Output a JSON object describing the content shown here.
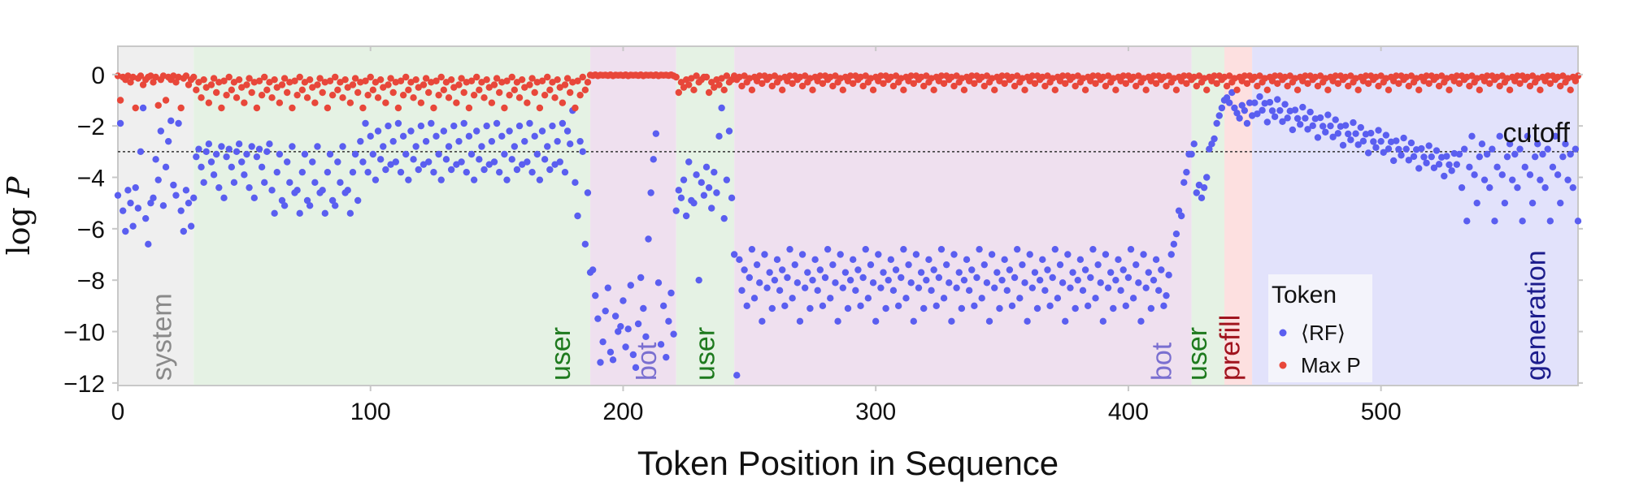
{
  "chart_data": {
    "type": "scatter",
    "xlabel": "Token Position in Sequence",
    "ylabel_prefix": "log",
    "ylabel_var": "P",
    "xlim": [
      0,
      578
    ],
    "ylim": [
      -12.1,
      1.1
    ],
    "xticks": [
      0,
      100,
      200,
      300,
      400,
      500
    ],
    "yticks": [
      0,
      -2,
      -4,
      -6,
      -8,
      -10,
      -12
    ],
    "ytick_labels": [
      "0",
      "−2",
      "−4",
      "−6",
      "−8",
      "−10",
      "−12"
    ],
    "grid": false,
    "cutoff": {
      "y": -3,
      "label": "cutoff"
    },
    "regions": [
      {
        "label": "system",
        "start": 0,
        "end": 30,
        "fill": "#efefef",
        "text_color": "#8a8a8a",
        "label_x": 21
      },
      {
        "label": "user",
        "start": 30,
        "end": 187,
        "fill": "#e5f2e4",
        "text_color": "#1e7a1e",
        "label_x": 179
      },
      {
        "label": "bot",
        "start": 187,
        "end": 221,
        "fill": "#efe0ef",
        "text_color": "#7a6fd0",
        "label_x": 213
      },
      {
        "label": "user",
        "start": 221,
        "end": 244,
        "fill": "#e5f2e4",
        "text_color": "#1e7a1e",
        "label_x": 236
      },
      {
        "label": "bot",
        "start": 244,
        "end": 425,
        "fill": "#efe0ef",
        "text_color": "#7a6fd0",
        "label_x": 417
      },
      {
        "label": "user",
        "start": 425,
        "end": 438,
        "fill": "#e5f2e4",
        "text_color": "#1e7a1e",
        "label_x": 431
      },
      {
        "label": "prefill",
        "start": 438,
        "end": 449,
        "fill": "#fde0e0",
        "text_color": "#a0141e",
        "label_x": 444
      },
      {
        "label": "generation",
        "start": 449,
        "end": 578,
        "fill": "#e2e2fb",
        "text_color": "#1c1c8c",
        "label_x": 565
      }
    ],
    "legend": {
      "title": "Token",
      "placement": "lower-right",
      "entries": [
        {
          "label": "⟨RF⟩",
          "color": "#5a5ef0"
        },
        {
          "label": "Max P",
          "color": "#e8473a"
        }
      ]
    },
    "series": [
      {
        "name": "⟨RF⟩",
        "color": "#5a5ef0",
        "segments": [
          {
            "start": 0,
            "end": 29,
            "pattern": [
              -4.7,
              -1.9,
              -5.3,
              -6.1,
              -4.5,
              -5.0,
              -5.9,
              -4.4,
              -5.2,
              -3.0,
              -1.3,
              -5.6,
              -6.6,
              -5.0,
              -4.8,
              -3.3,
              -4.1,
              -2.2,
              -5.1,
              -3.6,
              -2.6,
              -1.8,
              -4.3
            ]
          },
          {
            "start": 30,
            "end": 60,
            "base": -3.3,
            "amp": 0.8,
            "pattern": [
              -4.8,
              -3.2,
              -2.9,
              -3.6,
              -4.2,
              -3.0,
              -2.7,
              -3.4,
              -3.9,
              -3.1,
              -4.4,
              -2.8
            ]
          },
          {
            "start": 61,
            "end": 95,
            "base": -3.9,
            "amp": 1.1,
            "pattern": [
              -4.5,
              -5.4,
              -3.8,
              -3.1,
              -4.9,
              -5.1,
              -3.4,
              -4.2,
              -2.8,
              -4.6
            ]
          },
          {
            "start": 96,
            "end": 177,
            "base": -3.0,
            "amp": 0.9,
            "pattern": [
              -2.6,
              -3.4,
              -1.9,
              -3.8,
              -2.4,
              -3.1,
              -4.1,
              -2.2,
              -3.3,
              -2.8,
              -3.7,
              -2.0,
              -3.5
            ]
          },
          {
            "start": 178,
            "end": 186,
            "pattern": [
              -2.2,
              -2.7,
              -1.4,
              -4.2,
              -5.5,
              -2.6,
              -3.0,
              -6.6,
              -4.6
            ]
          },
          {
            "start": 187,
            "end": 220,
            "pattern": [
              -7.7,
              -7.6,
              -8.6,
              -9.5,
              -11.2,
              -10.4,
              -9.2,
              -8.3,
              -10.8,
              -11.1,
              -9.4,
              -10.0,
              -9.8,
              -8.8,
              -10.6,
              -9.9,
              -8.2,
              -10.9,
              -11.4,
              -9.7,
              -7.9,
              -9.1,
              -10.2,
              -6.4,
              -4.6,
              -3.3,
              -2.3,
              -8.1,
              -10.5,
              -9.0,
              -11.0,
              -9.6,
              -8.5,
              -10.1
            ]
          },
          {
            "start": 221,
            "end": 243,
            "pattern": [
              -5.3,
              -4.5,
              -4.8,
              -4.1,
              -5.5,
              -3.4,
              -4.9,
              -5.0,
              -3.9,
              -8.0,
              -4.2,
              -4.7,
              -3.6,
              -4.4,
              -5.2,
              -3.8,
              -4.6,
              -2.4,
              -1.3,
              -5.6,
              -4.1,
              -2.2,
              -4.8
            ]
          },
          {
            "start": 244,
            "end": 245,
            "pattern": [
              -7.0,
              -11.7
            ]
          },
          {
            "start": 246,
            "end": 414,
            "base": -7.8,
            "amp": 1.0,
            "pattern": [
              -7.2,
              -8.4,
              -7.6,
              -9.0,
              -7.9,
              -6.8,
              -8.7,
              -7.4,
              -8.1,
              -9.6,
              -7.0,
              -8.3,
              -7.7,
              -9.1,
              -8.0
            ]
          },
          {
            "start": 415,
            "end": 424,
            "pattern": [
              -8.6,
              -7.8,
              -7.0,
              -6.6,
              -6.2,
              -5.3,
              -5.5,
              -4.2,
              -3.8,
              -3.1
            ]
          },
          {
            "start": 425,
            "end": 437,
            "pattern": [
              -3.1,
              -2.7,
              -4.6,
              -4.3,
              -4.8,
              -4.4,
              -4.0,
              -2.9,
              -2.7,
              -2.5,
              -1.9,
              -1.6,
              -1.3
            ]
          },
          {
            "start": 438,
            "end": 449,
            "pattern": [
              -1.0,
              -0.9,
              -1.1,
              -0.7,
              -1.3,
              -1.5,
              -1.7,
              -1.2,
              -1.4,
              -1.9,
              -1.1,
              -1.6
            ]
          },
          {
            "start": 450,
            "end": 530,
            "linear": [
              -1.2,
              -3.6
            ],
            "amp": 0.5,
            "pattern": [
              0.1,
              -0.3,
              0.4,
              -0.1,
              0.2,
              -0.5,
              0.3,
              0.0,
              -0.2,
              0.5
            ]
          },
          {
            "start": 531,
            "end": 578,
            "base": -3.5,
            "amp": 0.9,
            "pattern": [
              -3.1,
              -4.4,
              -2.9,
              -5.7,
              -3.6,
              -2.4,
              -3.9,
              -5.0,
              -3.2,
              -2.7,
              -4.1
            ]
          }
        ]
      },
      {
        "name": "Max P",
        "color": "#e8473a",
        "segments": [
          {
            "start": 0,
            "end": 29,
            "pattern": [
              -0.05,
              -1.0,
              -0.1,
              -0.2,
              -0.05,
              -0.3,
              -0.1,
              -1.3,
              -0.15,
              -0.05,
              -0.4,
              -0.2,
              -0.1,
              -0.05,
              -0.3,
              -0.1,
              -1.2,
              -0.2
            ]
          },
          {
            "start": 30,
            "end": 186,
            "base": -0.45,
            "amp": 0.45,
            "pattern": [
              -0.1,
              -0.6,
              -0.3,
              -0.9,
              -0.2,
              -0.5,
              -1.1,
              -0.4,
              -0.15,
              -0.7,
              -0.3,
              -1.3,
              -0.25,
              -0.8
            ]
          },
          {
            "start": 187,
            "end": 220,
            "base": -0.03,
            "amp": 0.02,
            "pattern": [
              -0.02,
              -0.04,
              -0.01,
              -0.05,
              -0.02,
              -0.03
            ]
          },
          {
            "start": 221,
            "end": 243,
            "pattern": [
              -0.1,
              -0.7,
              -0.3,
              -0.5,
              -0.2,
              -0.4,
              -0.15,
              -0.6,
              -0.05,
              -0.3,
              -0.2,
              -0.1
            ]
          },
          {
            "start": 244,
            "end": 578,
            "base": -0.15,
            "amp": 0.2,
            "pattern": [
              -0.05,
              -0.2,
              -0.1,
              -0.45,
              -0.05,
              -0.3,
              -0.15,
              -0.6,
              -0.1,
              -0.25,
              -0.05,
              -0.35
            ]
          }
        ]
      }
    ]
  }
}
